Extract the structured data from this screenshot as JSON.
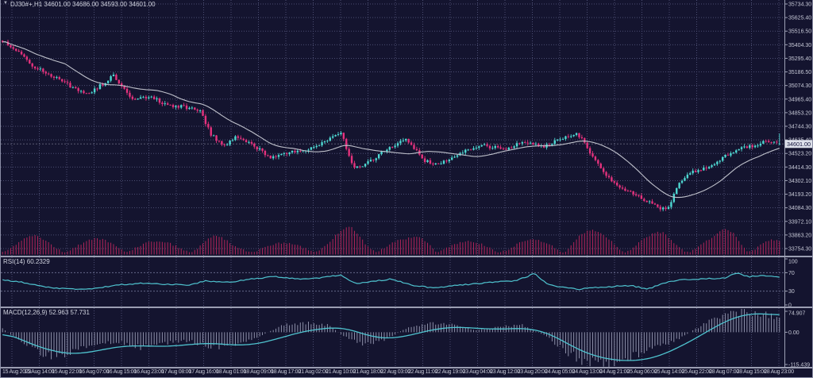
{
  "window": {
    "marker": "▼",
    "title": "DJ30#+,H1 34601.00 34686.00 34593.00 34601.00"
  },
  "colors": {
    "bg": "#14142f",
    "grid": "#4b4d72",
    "level": "#7a7da0",
    "axis_text": "#c6c8d6",
    "axis_line": "#9da0b4",
    "bull": "#4ed8d2",
    "bear": "#e5327d",
    "volume": "#b02559",
    "ma": "#c0c2cc",
    "cyan_line": "#4fc3cf",
    "hist": "#9a9db6",
    "price_line": "#aeb0c0",
    "price_box_bg": "#dde0ea",
    "price_box_text": "#12123a"
  },
  "price_axis": {
    "labels": [
      "35734.30",
      "35625.40",
      "35516.50",
      "35404.30",
      "35295.40",
      "35186.50",
      "35074.30",
      "34965.40",
      "34853.20",
      "34744.30",
      "34635.40",
      "34523.20",
      "34414.30",
      "34302.10",
      "34193.20",
      "34084.30",
      "33972.10",
      "33863.20",
      "33754.30"
    ],
    "current_label": "34601.00"
  },
  "time_axis": {
    "labels": [
      "15 Aug 2023",
      "15 Aug 14:00",
      "15 Aug 22:00",
      "16 Aug 07:00",
      "16 Aug 15:00",
      "16 Aug 23:00",
      "17 Aug 08:00",
      "17 Aug 16:00",
      "18 Aug 01:00",
      "18 Aug 09:00",
      "18 Aug 17:00",
      "21 Aug 02:00",
      "21 Aug 10:00",
      "21 Aug 18:00",
      "22 Aug 03:00",
      "22 Aug 11:00",
      "22 Aug 19:00",
      "23 Aug 04:00",
      "23 Aug 12:00",
      "23 Aug 20:00",
      "24 Aug 05:00",
      "24 Aug 13:00",
      "24 Aug 21:00",
      "25 Aug 06:00",
      "25 Aug 14:00",
      "25 Aug 22:00",
      "28 Aug 07:00",
      "28 Aug 15:00",
      "28 Aug 23:00"
    ]
  },
  "rsi_panel": {
    "label": "RSI(14) 60.2329",
    "axis_labels": [
      "100",
      "70",
      "30",
      "0"
    ],
    "axis_values": [
      100,
      70,
      30,
      0
    ],
    "levels": [
      70,
      30
    ]
  },
  "macd_panel": {
    "label": "MACD(12,26,9) 52.963 57.731",
    "axis_labels": [
      "74.907",
      "0.00",
      "-115.439"
    ],
    "axis_values": [
      74.907,
      0,
      -115.439
    ]
  },
  "chart_data": {
    "type": "candlestick",
    "symbol": "DJ30#+",
    "timeframe": "H1",
    "last_bar": {
      "open": 34601.0,
      "high": 34686.0,
      "low": 34593.0,
      "close": 34601.0
    },
    "current_price": 34601.0,
    "bar_count": 288,
    "y_axis": {
      "max": 35734.3,
      "min": 33754.3
    },
    "price_path": [
      [
        0.0,
        35430
      ],
      [
        0.02,
        35350
      ],
      [
        0.04,
        35230
      ],
      [
        0.065,
        35150
      ],
      [
        0.09,
        35060
      ],
      [
        0.11,
        35010
      ],
      [
        0.13,
        35090
      ],
      [
        0.142,
        35160
      ],
      [
        0.155,
        35050
      ],
      [
        0.168,
        34950
      ],
      [
        0.19,
        34990
      ],
      [
        0.21,
        34920
      ],
      [
        0.235,
        34900
      ],
      [
        0.255,
        34860
      ],
      [
        0.268,
        34680
      ],
      [
        0.285,
        34580
      ],
      [
        0.3,
        34660
      ],
      [
        0.32,
        34600
      ],
      [
        0.345,
        34490
      ],
      [
        0.37,
        34540
      ],
      [
        0.395,
        34560
      ],
      [
        0.42,
        34640
      ],
      [
        0.435,
        34700
      ],
      [
        0.452,
        34410
      ],
      [
        0.468,
        34440
      ],
      [
        0.495,
        34560
      ],
      [
        0.52,
        34640
      ],
      [
        0.542,
        34470
      ],
      [
        0.56,
        34430
      ],
      [
        0.585,
        34520
      ],
      [
        0.615,
        34590
      ],
      [
        0.645,
        34560
      ],
      [
        0.672,
        34620
      ],
      [
        0.695,
        34580
      ],
      [
        0.718,
        34640
      ],
      [
        0.74,
        34680
      ],
      [
        0.748,
        34620
      ],
      [
        0.762,
        34470
      ],
      [
        0.778,
        34330
      ],
      [
        0.795,
        34250
      ],
      [
        0.815,
        34190
      ],
      [
        0.832,
        34130
      ],
      [
        0.848,
        34070
      ],
      [
        0.858,
        34100
      ],
      [
        0.868,
        34250
      ],
      [
        0.88,
        34350
      ],
      [
        0.895,
        34390
      ],
      [
        0.912,
        34420
      ],
      [
        0.93,
        34500
      ],
      [
        0.95,
        34560
      ],
      [
        0.968,
        34590
      ],
      [
        0.985,
        34630
      ],
      [
        1.0,
        34601
      ]
    ],
    "volume_profile": [
      [
        0.0,
        0.45
      ],
      [
        0.04,
        0.55
      ],
      [
        0.08,
        0.4
      ],
      [
        0.12,
        0.45
      ],
      [
        0.16,
        0.5
      ],
      [
        0.2,
        0.35
      ],
      [
        0.24,
        0.4
      ],
      [
        0.27,
        0.6
      ],
      [
        0.3,
        0.3
      ],
      [
        0.34,
        0.28
      ],
      [
        0.38,
        0.35
      ],
      [
        0.42,
        0.55
      ],
      [
        0.45,
        0.9
      ],
      [
        0.48,
        0.5
      ],
      [
        0.52,
        0.45
      ],
      [
        0.55,
        0.75
      ],
      [
        0.58,
        0.4
      ],
      [
        0.62,
        0.35
      ],
      [
        0.66,
        0.4
      ],
      [
        0.7,
        0.45
      ],
      [
        0.74,
        0.8
      ],
      [
        0.78,
        0.65
      ],
      [
        0.82,
        0.55
      ],
      [
        0.85,
        0.7
      ],
      [
        0.88,
        0.45
      ],
      [
        0.91,
        0.5
      ],
      [
        0.94,
        0.95
      ],
      [
        0.97,
        0.6
      ],
      [
        1.0,
        0.4
      ]
    ],
    "rsi": {
      "period": 14,
      "last": 60.2329,
      "range": [
        0,
        100
      ],
      "levels": [
        70,
        30
      ],
      "path": [
        [
          0.0,
          55
        ],
        [
          0.03,
          48
        ],
        [
          0.06,
          38
        ],
        [
          0.09,
          34
        ],
        [
          0.12,
          36
        ],
        [
          0.15,
          44
        ],
        [
          0.18,
          47
        ],
        [
          0.21,
          45
        ],
        [
          0.24,
          43
        ],
        [
          0.26,
          52
        ],
        [
          0.29,
          49
        ],
        [
          0.32,
          56
        ],
        [
          0.35,
          62
        ],
        [
          0.38,
          56
        ],
        [
          0.41,
          59
        ],
        [
          0.435,
          65
        ],
        [
          0.455,
          46
        ],
        [
          0.475,
          51
        ],
        [
          0.5,
          56
        ],
        [
          0.53,
          42
        ],
        [
          0.555,
          37
        ],
        [
          0.58,
          42
        ],
        [
          0.61,
          46
        ],
        [
          0.635,
          50
        ],
        [
          0.66,
          52
        ],
        [
          0.685,
          68
        ],
        [
          0.7,
          46
        ],
        [
          0.72,
          38
        ],
        [
          0.74,
          34
        ],
        [
          0.76,
          37
        ],
        [
          0.785,
          40
        ],
        [
          0.81,
          42
        ],
        [
          0.83,
          34
        ],
        [
          0.85,
          47
        ],
        [
          0.87,
          54
        ],
        [
          0.89,
          56
        ],
        [
          0.91,
          57
        ],
        [
          0.93,
          59
        ],
        [
          0.945,
          69
        ],
        [
          0.96,
          61
        ],
        [
          0.975,
          64
        ],
        [
          1.0,
          60.23
        ]
      ]
    },
    "macd": {
      "params": [
        12,
        26,
        9
      ],
      "macd_last": 52.963,
      "signal_last": 57.731,
      "axis_max": 74.907,
      "axis_min": -115.439,
      "signal_path": [
        [
          0.0,
          5
        ],
        [
          0.03,
          -35
        ],
        [
          0.06,
          -65
        ],
        [
          0.09,
          -80
        ],
        [
          0.12,
          -68
        ],
        [
          0.15,
          -50
        ],
        [
          0.18,
          -48
        ],
        [
          0.21,
          -52
        ],
        [
          0.24,
          -44
        ],
        [
          0.27,
          -38
        ],
        [
          0.3,
          -48
        ],
        [
          0.33,
          -42
        ],
        [
          0.36,
          -18
        ],
        [
          0.39,
          5
        ],
        [
          0.42,
          16
        ],
        [
          0.44,
          18
        ],
        [
          0.465,
          -8
        ],
        [
          0.49,
          -25
        ],
        [
          0.52,
          -15
        ],
        [
          0.55,
          8
        ],
        [
          0.58,
          20
        ],
        [
          0.61,
          14
        ],
        [
          0.64,
          10
        ],
        [
          0.67,
          16
        ],
        [
          0.7,
          2
        ],
        [
          0.72,
          -30
        ],
        [
          0.75,
          -75
        ],
        [
          0.78,
          -98
        ],
        [
          0.81,
          -104
        ],
        [
          0.84,
          -92
        ],
        [
          0.87,
          -55
        ],
        [
          0.9,
          -10
        ],
        [
          0.92,
          25
        ],
        [
          0.94,
          52
        ],
        [
          0.96,
          66
        ],
        [
          0.975,
          70
        ],
        [
          0.99,
          62
        ],
        [
          1.0,
          57.73
        ]
      ],
      "hist_path": [
        [
          0.0,
          12
        ],
        [
          0.03,
          -45
        ],
        [
          0.06,
          -85
        ],
        [
          0.09,
          -70
        ],
        [
          0.12,
          -40
        ],
        [
          0.15,
          -35
        ],
        [
          0.18,
          -55
        ],
        [
          0.21,
          -40
        ],
        [
          0.24,
          -30
        ],
        [
          0.27,
          -55
        ],
        [
          0.3,
          -45
        ],
        [
          0.33,
          -15
        ],
        [
          0.36,
          25
        ],
        [
          0.39,
          35
        ],
        [
          0.42,
          25
        ],
        [
          0.44,
          -15
        ],
        [
          0.465,
          -45
        ],
        [
          0.49,
          -30
        ],
        [
          0.52,
          15
        ],
        [
          0.55,
          35
        ],
        [
          0.58,
          25
        ],
        [
          0.61,
          8
        ],
        [
          0.64,
          20
        ],
        [
          0.67,
          25
        ],
        [
          0.7,
          -15
        ],
        [
          0.72,
          -60
        ],
        [
          0.75,
          -105
        ],
        [
          0.78,
          -110
        ],
        [
          0.81,
          -85
        ],
        [
          0.84,
          -60
        ],
        [
          0.87,
          -25
        ],
        [
          0.9,
          25
        ],
        [
          0.92,
          55
        ],
        [
          0.94,
          70
        ],
        [
          0.96,
          73
        ],
        [
          0.975,
          68
        ],
        [
          0.99,
          58
        ],
        [
          1.0,
          53
        ]
      ]
    }
  }
}
